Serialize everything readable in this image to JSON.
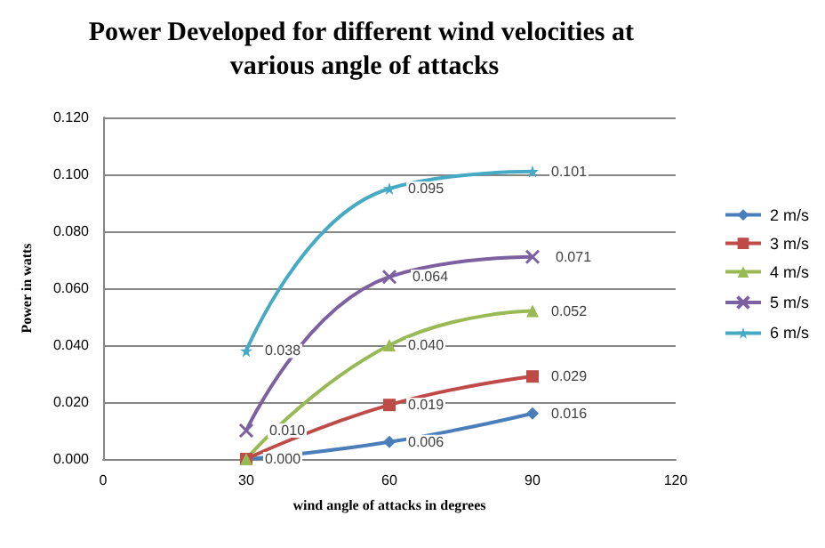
{
  "chart_data": {
    "type": "line",
    "title": "Power Developed for different wind velocities at various angle of attacks",
    "xlabel": "wind angle of attacks in degrees",
    "ylabel": "Power in watts",
    "x": [
      30,
      60,
      90
    ],
    "xlim": [
      0,
      120
    ],
    "xticks": [
      0,
      30,
      60,
      90,
      120
    ],
    "ylim": [
      0,
      0.12
    ],
    "yticks": [
      {
        "value": 0,
        "label": "0.000"
      },
      {
        "value": 0.02,
        "label": "0.020"
      },
      {
        "value": 0.04,
        "label": "0.040"
      },
      {
        "value": 0.06,
        "label": "0.060"
      },
      {
        "value": 0.08,
        "label": "0.080"
      },
      {
        "value": 0.1,
        "label": "0.100"
      },
      {
        "value": 0.12,
        "label": "0.120"
      }
    ],
    "grid": "y",
    "legend": "right",
    "series": [
      {
        "name": "2 m/s",
        "color": "#4a7ebb",
        "marker": "diamond",
        "values": [
          0,
          0.006,
          0.016
        ],
        "value_labels": [
          null,
          "0.006",
          "0.016"
        ]
      },
      {
        "name": "3 m/s",
        "color": "#be4b48",
        "marker": "square",
        "values": [
          0,
          0.019,
          0.029
        ],
        "value_labels": [
          "0.000",
          "0.019",
          "0.029"
        ]
      },
      {
        "name": "4 m/s",
        "color": "#98b954",
        "marker": "triangle",
        "values": [
          0,
          0.04,
          0.052
        ],
        "value_labels": [
          null,
          "0.040",
          "0.052"
        ]
      },
      {
        "name": "5 m/s",
        "color": "#7d60a0",
        "marker": "cross",
        "values": [
          0.01,
          0.064,
          0.071
        ],
        "value_labels": [
          "0.010",
          "0.064",
          "0.071"
        ]
      },
      {
        "name": "6 m/s",
        "color": "#46aac5",
        "marker": "star",
        "values": [
          0.038,
          0.095,
          0.101
        ],
        "value_labels": [
          "0.038",
          "0.095",
          "0.101"
        ]
      }
    ]
  }
}
